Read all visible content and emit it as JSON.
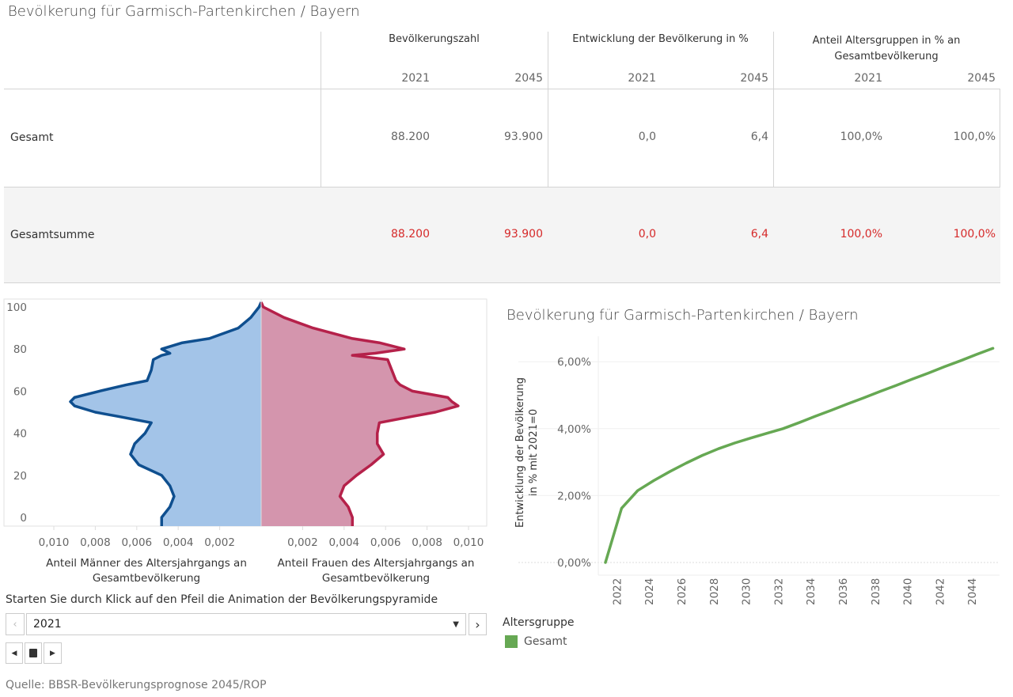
{
  "title": "Bevölkerung für Garmisch-Partenkirchen / Bayern",
  "table": {
    "groups": [
      {
        "label": "Bevölkerungszahl",
        "years": [
          "2021",
          "2045"
        ]
      },
      {
        "label": "Entwicklung der Bevölkerung in %",
        "years": [
          "2021",
          "2045"
        ]
      },
      {
        "label": "Anteil Altersgruppen in % an Gesamtbevölkerung",
        "years": [
          "2021",
          "2045"
        ]
      }
    ],
    "rows": [
      {
        "label": "Gesamt",
        "values": [
          "88.200",
          "93.900",
          "0,0",
          "6,4",
          "100,0%",
          "100,0%"
        ]
      },
      {
        "label": "Gesamtsumme",
        "values": [
          "88.200",
          "93.900",
          "0,0",
          "6,4",
          "100,0%",
          "100,0%"
        ],
        "highlight": "#d62a2a"
      }
    ]
  },
  "chart_data": [
    {
      "type": "area",
      "subtype": "population-pyramid",
      "ages": [
        0,
        5,
        10,
        15,
        20,
        25,
        30,
        35,
        40,
        45,
        48,
        50,
        53,
        55,
        57,
        60,
        63,
        65,
        70,
        75,
        77,
        78,
        80,
        83,
        85,
        90,
        95,
        100
      ],
      "series": [
        {
          "name": "Anteil Männer des Altersjahrgangs an Gesamtbevölkerung",
          "color": "#0f4f8f",
          "fill": "#a3c4e8",
          "values": [
            0.0048,
            0.0044,
            0.0042,
            0.0044,
            0.0048,
            0.0059,
            0.0063,
            0.0061,
            0.0056,
            0.0053,
            0.0069,
            0.008,
            0.009,
            0.0092,
            0.009,
            0.0078,
            0.0065,
            0.0055,
            0.0053,
            0.0052,
            0.0048,
            0.0044,
            0.0048,
            0.0038,
            0.0025,
            0.0011,
            0.0005,
            0.0001
          ]
        },
        {
          "name": "Anteil Frauen des Altersjahrgangs an Gesamtbevölkerung",
          "color": "#b5214a",
          "fill": "#d495ad",
          "values": [
            0.0044,
            0.0042,
            0.0038,
            0.004,
            0.0046,
            0.0053,
            0.0059,
            0.0056,
            0.0056,
            0.0057,
            0.0073,
            0.0084,
            0.0095,
            0.0092,
            0.009,
            0.0073,
            0.0067,
            0.0065,
            0.0063,
            0.0061,
            0.0044,
            0.0055,
            0.0069,
            0.0057,
            0.0044,
            0.0025,
            0.0011,
            0.0001
          ]
        }
      ],
      "y_ticks": [
        "0",
        "20",
        "40",
        "60",
        "80",
        "100"
      ],
      "x_ticks_left": [
        "0,010",
        "0,008",
        "0,006",
        "0,004",
        "0,002"
      ],
      "x_ticks_right": [
        "0,002",
        "0,004",
        "0,006",
        "0,008",
        "0,010"
      ],
      "xlabel_left": "Anteil Männer des Altersjahrgangs an Gesamtbevölkerung",
      "xlabel_right": "Anteil Frauen des Altersjahrgangs an Gesamtbevölkerung",
      "ylim": [
        0,
        100
      ],
      "xlim": [
        0,
        0.011
      ]
    },
    {
      "type": "line",
      "title": "Bevölkerung für Garmisch-Partenkirchen / Bayern",
      "ylabel": "Entwicklung der Bevölkerung in % mit 2021=0",
      "x": [
        2021,
        2022,
        2023,
        2024,
        2025,
        2026,
        2027,
        2028,
        2029,
        2030,
        2031,
        2032,
        2033,
        2034,
        2035,
        2036,
        2037,
        2038,
        2039,
        2040,
        2041,
        2042,
        2043,
        2044,
        2045
      ],
      "series": [
        {
          "name": "Gesamt",
          "color": "#66a853",
          "values": [
            0,
            1.62,
            2.15,
            2.45,
            2.72,
            2.97,
            3.2,
            3.4,
            3.57,
            3.72,
            3.86,
            4.0,
            4.18,
            4.37,
            4.55,
            4.74,
            4.92,
            5.11,
            5.29,
            5.48,
            5.66,
            5.85,
            6.03,
            6.22,
            6.4
          ]
        }
      ],
      "y_ticks": [
        "0,00%",
        "2,00%",
        "4,00%",
        "6,00%"
      ],
      "x_ticks": [
        "2022",
        "2024",
        "2026",
        "2028",
        "2030",
        "2032",
        "2034",
        "2036",
        "2038",
        "2040",
        "2042",
        "2044"
      ],
      "ylim": [
        -0.35,
        6.8
      ],
      "grid": true,
      "legend": {
        "title": "Altersgruppe",
        "placement": "bottom-left"
      }
    }
  ],
  "controls": {
    "instruction": "Starten Sie durch Klick auf den Pfeil die Animation der Bevölkerungspyramide",
    "year_selected": "2021"
  },
  "source": "Quelle: BBSR-Bevölkerungsprognose 2045/ROP"
}
